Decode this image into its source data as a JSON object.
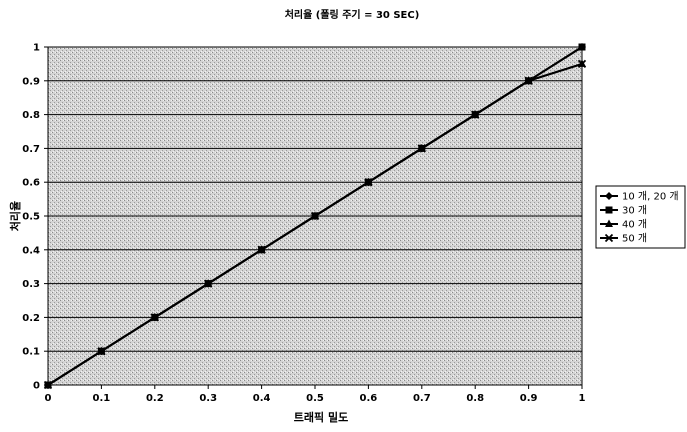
{
  "chart_data": {
    "type": "line",
    "title": "처리율 (폴링 주기 = 30 SEC)",
    "xlabel": "트래픽 밀도",
    "ylabel": "처리율",
    "xlim": [
      0,
      1
    ],
    "ylim": [
      0,
      1
    ],
    "x_ticks": [
      "0",
      "0.1",
      "0.2",
      "0.3",
      "0.4",
      "0.5",
      "0.6",
      "0.7",
      "0.8",
      "0.9",
      "1"
    ],
    "y_ticks": [
      "0",
      "0.1",
      "0.2",
      "0.3",
      "0.4",
      "0.5",
      "0.6",
      "0.7",
      "0.8",
      "0.9",
      "1"
    ],
    "grid": true,
    "legend_position": "right",
    "x": [
      0,
      0.1,
      0.2,
      0.3,
      0.4,
      0.5,
      0.6,
      0.7,
      0.8,
      0.9,
      1.0
    ],
    "series": [
      {
        "name": "10 개, 20 개",
        "marker": "diamond",
        "values": [
          0,
          0.1,
          0.2,
          0.3,
          0.4,
          0.5,
          0.6,
          0.7,
          0.8,
          0.9,
          1.0
        ]
      },
      {
        "name": "30 개",
        "marker": "square",
        "values": [
          0,
          0.1,
          0.2,
          0.3,
          0.4,
          0.5,
          0.6,
          0.7,
          0.8,
          0.9,
          1.0
        ]
      },
      {
        "name": "40 개",
        "marker": "triangle",
        "values": [
          0,
          0.1,
          0.2,
          0.3,
          0.4,
          0.5,
          0.6,
          0.7,
          0.8,
          0.9,
          0.95
        ]
      },
      {
        "name": "50 개",
        "marker": "x",
        "values": [
          0,
          0.1,
          0.2,
          0.3,
          0.4,
          0.5,
          0.6,
          0.7,
          0.8,
          0.9,
          0.95
        ]
      }
    ]
  }
}
